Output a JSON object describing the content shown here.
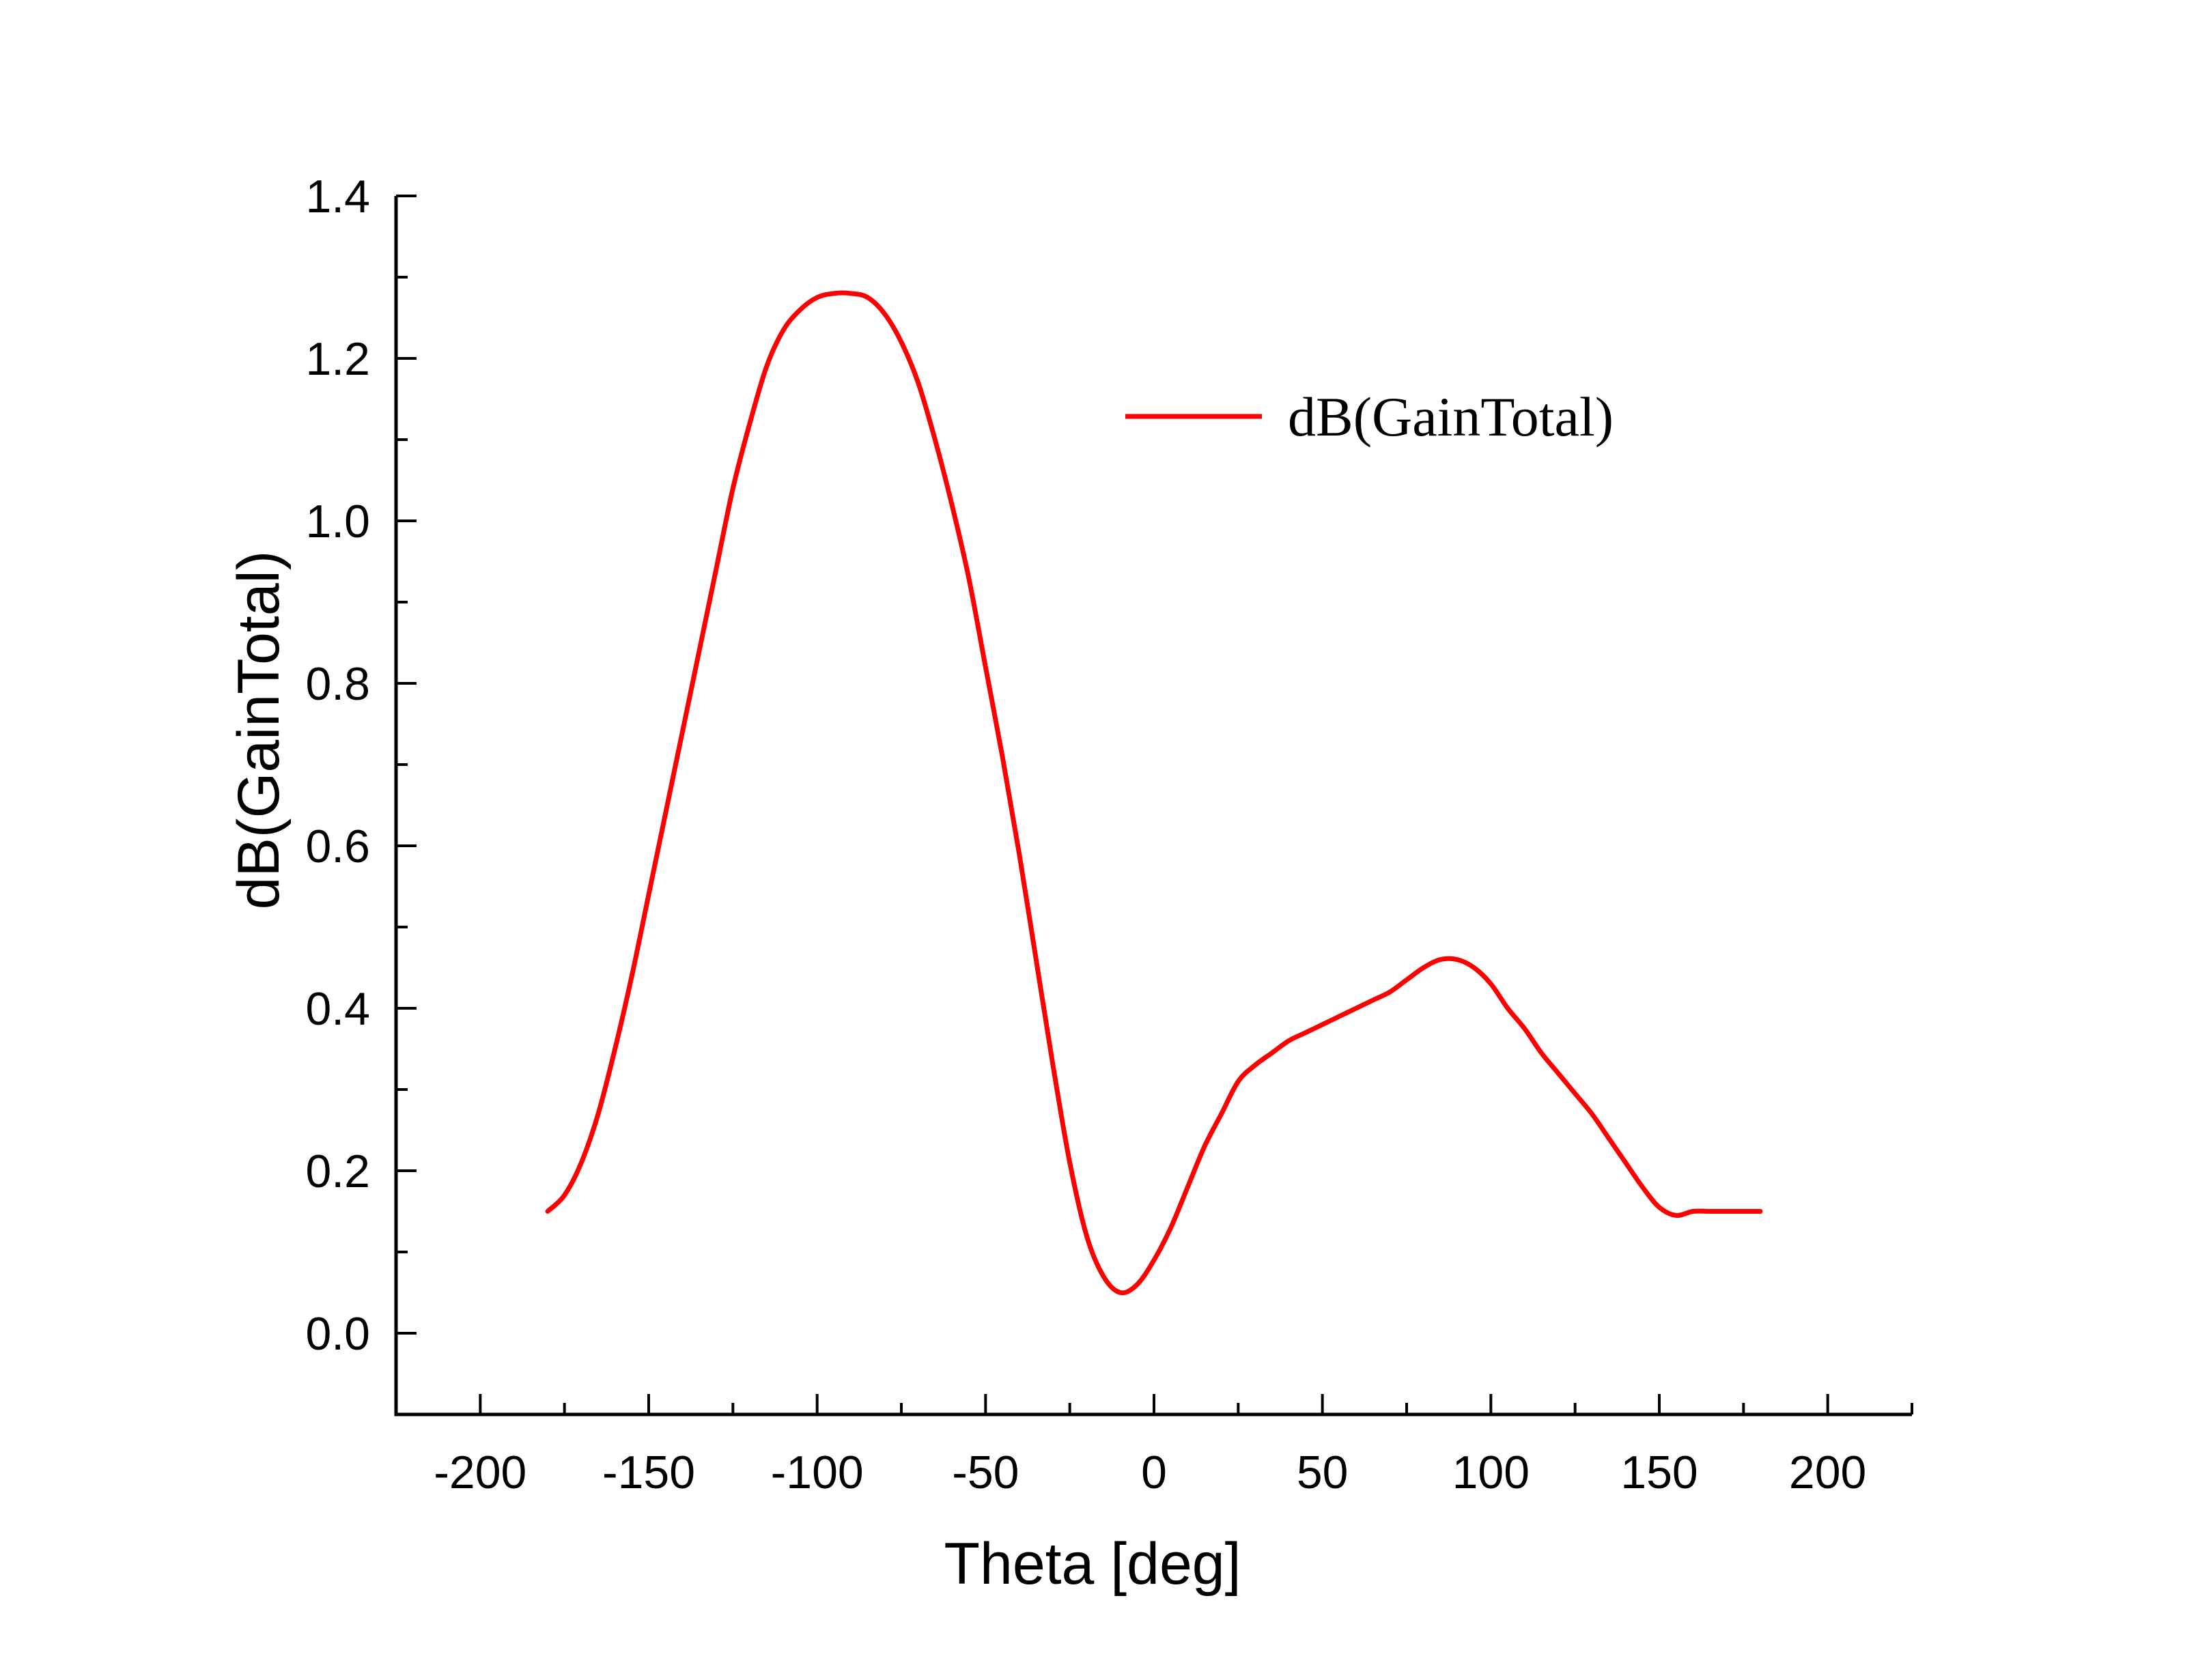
{
  "chart_data": {
    "type": "line",
    "title": "",
    "xlabel": "Theta [deg]",
    "ylabel": "dB(GainTotal)",
    "xlim": [
      -225,
      225
    ],
    "ylim": [
      -0.1,
      1.4
    ],
    "xticks": [
      -200,
      -150,
      -100,
      -50,
      0,
      50,
      100,
      150,
      200
    ],
    "xtick_labels": [
      "-200",
      "-150",
      "-100",
      "-50",
      "0",
      "50",
      "100",
      "150",
      "200"
    ],
    "yticks": [
      0.0,
      0.2,
      0.4,
      0.6,
      0.8,
      1.0,
      1.2,
      1.4
    ],
    "ytick_labels": [
      "0.0",
      "0.2",
      "0.4",
      "0.6",
      "0.8",
      "1.0",
      "1.2",
      "1.4"
    ],
    "grid": false,
    "legend": {
      "position": "top-right",
      "entries": [
        "dB(GainTotal)"
      ]
    },
    "series": [
      {
        "name": "dB(GainTotal)",
        "color": "#ff0000",
        "x": [
          -180,
          -175,
          -170,
          -165,
          -160,
          -155,
          -150,
          -145,
          -140,
          -135,
          -130,
          -125,
          -120,
          -115,
          -110,
          -105,
          -100,
          -95,
          -90,
          -85,
          -80,
          -75,
          -70,
          -65,
          -60,
          -55,
          -50,
          -45,
          -40,
          -35,
          -30,
          -25,
          -20,
          -15,
          -10,
          -5,
          0,
          5,
          10,
          15,
          20,
          25,
          30,
          35,
          40,
          45,
          50,
          55,
          60,
          65,
          70,
          75,
          80,
          85,
          90,
          95,
          100,
          105,
          110,
          115,
          120,
          125,
          130,
          135,
          140,
          145,
          150,
          155,
          160,
          165,
          170,
          175,
          180
        ],
        "values": [
          0.15,
          0.17,
          0.21,
          0.27,
          0.35,
          0.44,
          0.54,
          0.64,
          0.74,
          0.84,
          0.94,
          1.04,
          1.12,
          1.19,
          1.235,
          1.26,
          1.275,
          1.28,
          1.28,
          1.275,
          1.255,
          1.22,
          1.17,
          1.1,
          1.02,
          0.93,
          0.82,
          0.71,
          0.59,
          0.46,
          0.33,
          0.21,
          0.12,
          0.07,
          0.05,
          0.06,
          0.09,
          0.13,
          0.18,
          0.23,
          0.27,
          0.31,
          0.33,
          0.345,
          0.36,
          0.37,
          0.38,
          0.39,
          0.4,
          0.41,
          0.42,
          0.435,
          0.45,
          0.46,
          0.46,
          0.45,
          0.43,
          0.4,
          0.375,
          0.345,
          0.32,
          0.295,
          0.27,
          0.24,
          0.21,
          0.18,
          0.155,
          0.145,
          0.15,
          0.15,
          0.15,
          0.15,
          0.15
        ]
      }
    ]
  }
}
